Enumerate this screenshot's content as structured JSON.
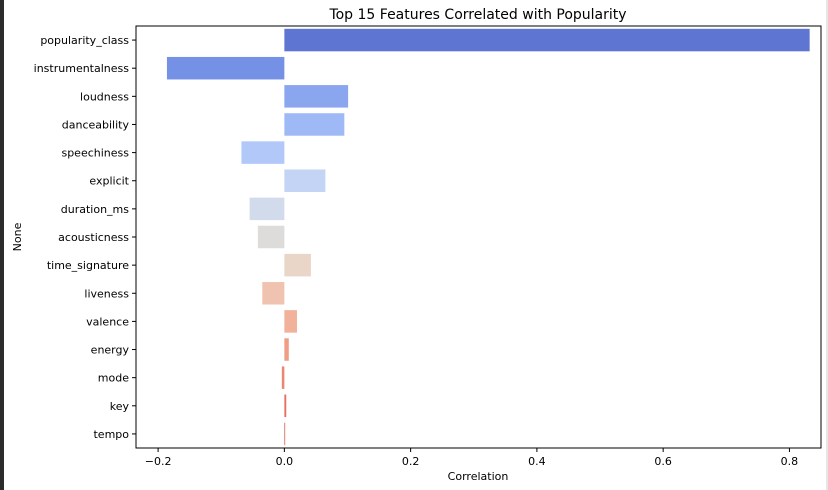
{
  "chart_data": {
    "type": "bar",
    "orientation": "horizontal",
    "title": "Top 15 Features Correlated with Popularity",
    "xlabel": "Correlation",
    "ylabel": "None",
    "xlim": [
      -0.235,
      0.85
    ],
    "xticks": [
      -0.2,
      0.0,
      0.2,
      0.4,
      0.6,
      0.8
    ],
    "xtick_labels": [
      "−0.2",
      "0.0",
      "0.2",
      "0.4",
      "0.6",
      "0.8"
    ],
    "grid": false,
    "categories": [
      "popularity_class",
      "instrumentalness",
      "loudness",
      "danceability",
      "speechiness",
      "explicit",
      "duration_ms",
      "acousticness",
      "time_signature",
      "liveness",
      "valence",
      "energy",
      "mode",
      "key",
      "tempo"
    ],
    "values": [
      0.832,
      -0.186,
      0.101,
      0.095,
      -0.068,
      0.065,
      -0.055,
      -0.042,
      0.042,
      -0.035,
      0.02,
      0.007,
      -0.004,
      0.003,
      0.001
    ],
    "colors": [
      "#5e75d1",
      "#7491e6",
      "#89a6ef",
      "#9fb9f6",
      "#b1c8f9",
      "#c4d4f4",
      "#d2dbeb",
      "#dedcdb",
      "#ead5c9",
      "#efc3b0",
      "#f1b19b",
      "#ef9d84",
      "#e88870",
      "#e2725f",
      "#d85a4c"
    ]
  }
}
